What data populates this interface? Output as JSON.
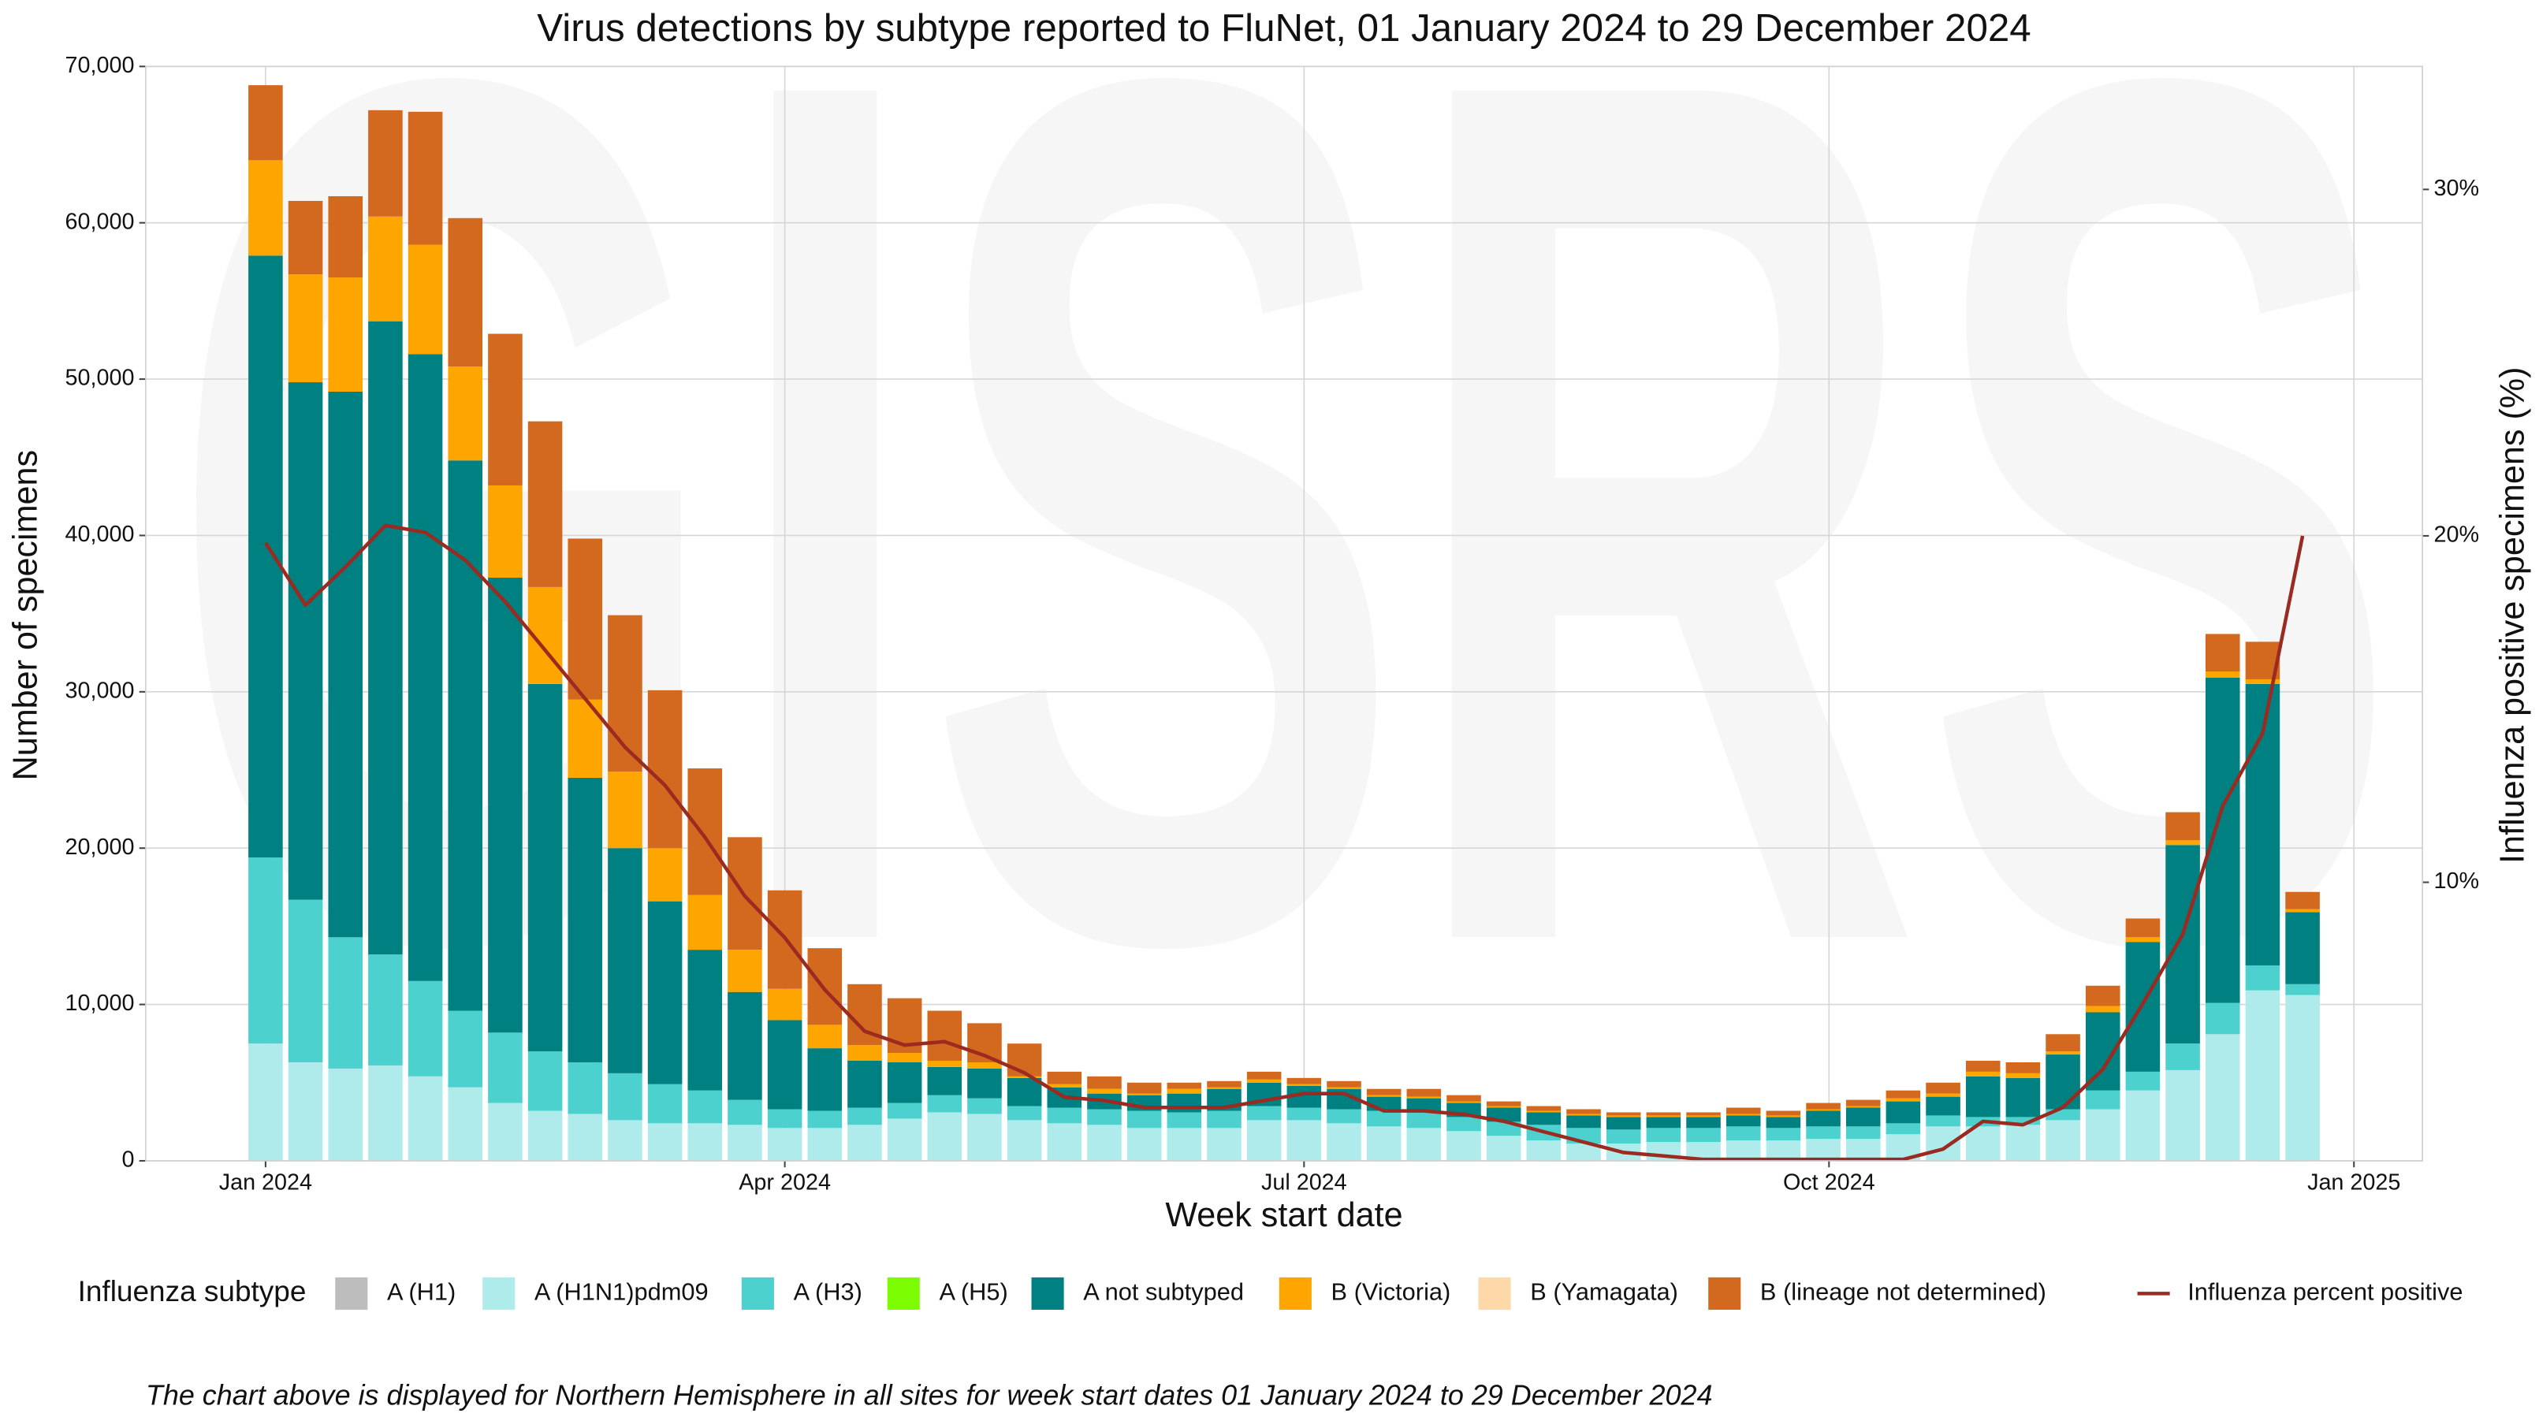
{
  "chart_data": {
    "type": "bar",
    "title": "Virus detections by subtype reported to FluNet, 01 January 2024 to 29 December 2024",
    "watermark": "GISRS",
    "x_label": "Week start date",
    "y_label": "Number of specimens",
    "y2_label": "Influenza positive specimens (%)",
    "legend_title": "Influenza subtype",
    "footnote": "The chart above is displayed for Northern Hemisphere in all sites for week start dates 01 January 2024 to 29 December 2024",
    "stacked": true,
    "grid": true,
    "legend": "bottom",
    "x": [
      "2024-01-01",
      "2024-01-08",
      "2024-01-15",
      "2024-01-22",
      "2024-01-29",
      "2024-02-05",
      "2024-02-12",
      "2024-02-19",
      "2024-02-26",
      "2024-03-04",
      "2024-03-11",
      "2024-03-18",
      "2024-03-25",
      "2024-04-01",
      "2024-04-08",
      "2024-04-15",
      "2024-04-22",
      "2024-04-29",
      "2024-05-06",
      "2024-05-13",
      "2024-05-20",
      "2024-05-27",
      "2024-06-03",
      "2024-06-10",
      "2024-06-17",
      "2024-06-24",
      "2024-07-01",
      "2024-07-08",
      "2024-07-15",
      "2024-07-22",
      "2024-07-29",
      "2024-08-05",
      "2024-08-12",
      "2024-08-19",
      "2024-08-26",
      "2024-09-02",
      "2024-09-09",
      "2024-09-16",
      "2024-09-23",
      "2024-09-30",
      "2024-10-07",
      "2024-10-14",
      "2024-10-21",
      "2024-10-28",
      "2024-11-04",
      "2024-11-11",
      "2024-11-18",
      "2024-11-25",
      "2024-12-02",
      "2024-12-09",
      "2024-12-16",
      "2024-12-23"
    ],
    "xlim": [
      "2023-12-11",
      "2025-01-13"
    ],
    "xticks": [
      {
        "value": "2024-01-01",
        "label": "Jan 2024"
      },
      {
        "value": "2024-04-01",
        "label": "Apr 2024"
      },
      {
        "value": "2024-07-01",
        "label": "Jul 2024"
      },
      {
        "value": "2024-10-01",
        "label": "Oct 2024"
      },
      {
        "value": "2025-01-01",
        "label": "Jan 2025"
      }
    ],
    "ylim": [
      0,
      70000
    ],
    "yticks": [
      0,
      {
        "value": 10000,
        "label": "10,000"
      },
      {
        "value": 20000,
        "label": "20,000"
      },
      {
        "value": 30000,
        "label": "30,000"
      },
      {
        "value": 40000,
        "label": "40,000"
      },
      {
        "value": 50000,
        "label": "50,000"
      },
      {
        "value": 60000,
        "label": "60,000"
      },
      {
        "value": 70000,
        "label": "70,000"
      }
    ],
    "y2lim": [
      1.96,
      33.55
    ],
    "y2ticks": [
      {
        "value": 10,
        "label": "10%"
      },
      {
        "value": 20,
        "label": "20%"
      },
      {
        "value": 30,
        "label": "30%"
      }
    ],
    "series": [
      {
        "name": "A (H1)",
        "color": "#bdbdbd",
        "values": [
          0,
          0,
          0,
          0,
          0,
          0,
          0,
          0,
          0,
          0,
          0,
          0,
          0,
          0,
          0,
          0,
          0,
          0,
          0,
          0,
          0,
          0,
          0,
          0,
          0,
          0,
          0,
          0,
          0,
          0,
          0,
          0,
          0,
          0,
          0,
          0,
          0,
          0,
          0,
          0,
          0,
          0,
          0,
          0,
          0,
          0,
          0,
          0,
          0,
          0,
          0,
          0
        ]
      },
      {
        "name": "A (H1N1)pdm09",
        "color": "#afebeb",
        "values": [
          7500,
          6300,
          5900,
          6100,
          5400,
          4700,
          3700,
          3200,
          3000,
          2600,
          2400,
          2400,
          2300,
          2100,
          2100,
          2300,
          2700,
          3100,
          3000,
          2600,
          2400,
          2300,
          2100,
          2100,
          2100,
          2600,
          2600,
          2400,
          2200,
          2100,
          1900,
          1600,
          1300,
          1100,
          1100,
          1200,
          1200,
          1300,
          1300,
          1400,
          1400,
          1700,
          2200,
          2200,
          2300,
          2600,
          3300,
          4500,
          5800,
          8100,
          10900,
          10600
        ]
      },
      {
        "name": "A (H3)",
        "color": "#4dd1cf",
        "values": [
          11900,
          10400,
          8400,
          7100,
          6100,
          4900,
          4500,
          3800,
          3300,
          3000,
          2500,
          2100,
          1600,
          1200,
          1100,
          1100,
          1000,
          1100,
          1000,
          900,
          1000,
          1000,
          1100,
          1000,
          1100,
          900,
          800,
          900,
          1000,
          1000,
          900,
          900,
          1000,
          1000,
          900,
          900,
          900,
          900,
          800,
          800,
          800,
          700,
          700,
          600,
          500,
          700,
          1200,
          1200,
          1700,
          2000,
          1600,
          700
        ]
      },
      {
        "name": "A (H5)",
        "color": "#7cfc00",
        "values": [
          0,
          0,
          0,
          0,
          0,
          0,
          0,
          0,
          0,
          0,
          0,
          0,
          0,
          0,
          0,
          0,
          0,
          0,
          0,
          0,
          0,
          0,
          0,
          0,
          0,
          0,
          0,
          0,
          0,
          0,
          0,
          0,
          0,
          0,
          0,
          0,
          0,
          0,
          0,
          0,
          0,
          0,
          0,
          0,
          0,
          0,
          0,
          0,
          0,
          0,
          0,
          0
        ]
      },
      {
        "name": "A not subtyped",
        "color": "#008080",
        "values": [
          38500,
          33100,
          34900,
          40500,
          40100,
          35200,
          29100,
          23500,
          18200,
          14400,
          11700,
          9000,
          6900,
          5700,
          4000,
          3000,
          2600,
          1800,
          1900,
          1800,
          1300,
          1000,
          1000,
          1200,
          1400,
          1500,
          1400,
          1300,
          900,
          900,
          900,
          900,
          800,
          800,
          800,
          700,
          700,
          700,
          700,
          1000,
          1200,
          1400,
          1200,
          2600,
          2500,
          3500,
          5000,
          8300,
          12700,
          20800,
          18000,
          4600
        ]
      },
      {
        "name": "B (Victoria)",
        "color": "#ffa500",
        "values": [
          6100,
          6900,
          7300,
          6700,
          7000,
          6000,
          5900,
          6200,
          5000,
          4900,
          3400,
          3500,
          2700,
          2000,
          1500,
          1000,
          600,
          400,
          400,
          100,
          200,
          300,
          100,
          300,
          100,
          200,
          100,
          100,
          100,
          100,
          100,
          100,
          100,
          100,
          100,
          100,
          100,
          100,
          100,
          100,
          100,
          200,
          200,
          300,
          300,
          200,
          400,
          300,
          300,
          400,
          300,
          200
        ]
      },
      {
        "name": "B (Yamagata)",
        "color": "#fdd9a9",
        "values": [
          0,
          0,
          0,
          0,
          0,
          0,
          0,
          0,
          0,
          0,
          0,
          0,
          0,
          0,
          0,
          0,
          0,
          0,
          0,
          0,
          0,
          0,
          0,
          0,
          0,
          0,
          0,
          0,
          0,
          0,
          0,
          0,
          0,
          0,
          0,
          0,
          0,
          0,
          0,
          0,
          0,
          0,
          0,
          0,
          0,
          0,
          0,
          0,
          0,
          0,
          0,
          0
        ]
      },
      {
        "name": "B (lineage not determined)",
        "color": "#d2691e",
        "values": [
          4800,
          4700,
          5200,
          6800,
          8500,
          9500,
          9700,
          10600,
          10300,
          10000,
          10100,
          8100,
          7200,
          6300,
          4900,
          3900,
          3500,
          3200,
          2500,
          2100,
          800,
          800,
          700,
          400,
          400,
          500,
          400,
          400,
          400,
          500,
          400,
          300,
          300,
          300,
          200,
          200,
          200,
          400,
          300,
          400,
          400,
          500,
          700,
          700,
          700,
          1100,
          1300,
          1200,
          1800,
          2400,
          2400,
          1100
        ]
      },
      {
        "name": "Influenza percent positive",
        "type": "line",
        "axis": "y2",
        "color": "#9b2a20",
        "values": [
          19.8,
          18.0,
          19.1,
          20.3,
          20.1,
          19.3,
          18.1,
          16.7,
          15.3,
          13.9,
          12.8,
          11.3,
          9.6,
          8.4,
          6.9,
          5.7,
          5.3,
          5.4,
          5.0,
          4.5,
          3.8,
          3.7,
          3.5,
          3.5,
          3.5,
          3.7,
          3.9,
          3.9,
          3.4,
          3.4,
          3.3,
          3.1,
          2.8,
          2.5,
          2.2,
          2.1,
          2.0,
          2.0,
          2.0,
          2.0,
          2.0,
          2.0,
          2.3,
          3.1,
          3.0,
          3.5,
          4.6,
          6.5,
          8.5,
          12.2,
          14.3,
          20.0
        ]
      }
    ]
  }
}
